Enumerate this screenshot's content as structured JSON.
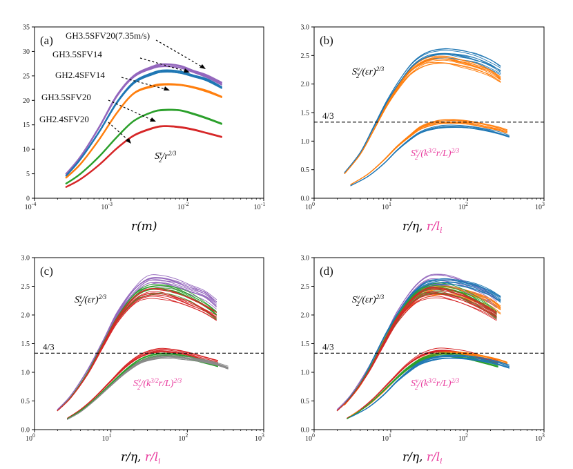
{
  "colors": {
    "purple": "#9467bd",
    "blue": "#1f77b4",
    "orange": "#ff7f0e",
    "green": "#2ca02c",
    "red": "#d62728",
    "magenta": "#e8399c",
    "gray": "#8a8a8a",
    "yellow": "#bcbd22"
  },
  "chart_data": [
    {
      "panel": "(a)",
      "type": "line",
      "xscale": "log",
      "xlim": [
        0.0001,
        0.1
      ],
      "ylim": [
        0,
        35
      ],
      "xticks": [
        "10^{-4}",
        "10^{-3}",
        "10^{-2}",
        "10^{-1}"
      ],
      "yticks": [
        "0",
        "5",
        "10",
        "15",
        "20",
        "25",
        "30",
        "35"
      ],
      "xlabel": "r(m)",
      "curve_label": "S2v/r^2/3",
      "series": [
        {
          "name": "GH3.5SFV20(7.35m/s)",
          "color": "purple",
          "x": [
            0.00026,
            0.0004,
            0.0007,
            0.0012,
            0.002,
            0.0035,
            0.005,
            0.008,
            0.012,
            0.018,
            0.028
          ],
          "y": [
            5.0,
            8.5,
            14.5,
            21.0,
            25.0,
            26.8,
            27.3,
            27.0,
            26.0,
            25.0,
            23.5
          ]
        },
        {
          "name": "GH3.5SFV14",
          "color": "blue",
          "x": [
            0.00026,
            0.0004,
            0.0007,
            0.0012,
            0.002,
            0.0035,
            0.005,
            0.008,
            0.012,
            0.018,
            0.028
          ],
          "y": [
            4.6,
            8.0,
            13.5,
            19.5,
            23.5,
            25.3,
            25.8,
            25.6,
            24.8,
            24.0,
            22.5
          ]
        },
        {
          "name": "GH2.4SFV14",
          "color": "orange",
          "x": [
            0.00026,
            0.0004,
            0.0007,
            0.0012,
            0.002,
            0.0035,
            0.005,
            0.008,
            0.012,
            0.018,
            0.028
          ],
          "y": [
            4.2,
            7.0,
            12.0,
            17.5,
            21.5,
            23.0,
            23.4,
            23.3,
            22.8,
            22.0,
            20.8
          ]
        },
        {
          "name": "GH3.5SFV20",
          "color": "green",
          "x": [
            0.00026,
            0.0004,
            0.0007,
            0.0012,
            0.002,
            0.0035,
            0.005,
            0.008,
            0.012,
            0.018,
            0.028
          ],
          "y": [
            3.0,
            5.0,
            8.5,
            12.5,
            15.8,
            17.6,
            18.0,
            17.9,
            17.2,
            16.3,
            15.2
          ]
        },
        {
          "name": "GH2.4SFV20",
          "color": "red",
          "x": [
            0.00026,
            0.0004,
            0.0007,
            0.0012,
            0.002,
            0.0035,
            0.005,
            0.008,
            0.012,
            0.018,
            0.028
          ],
          "y": [
            2.3,
            3.9,
            6.8,
            10.2,
            12.8,
            14.3,
            14.7,
            14.5,
            14.0,
            13.3,
            12.5
          ]
        }
      ],
      "annotations": [
        "GH3.5SFV20(7.35m/s)",
        "GH3.5SFV14",
        "GH2.4SFV14",
        "GH3.5SFV20",
        "GH2.4SFV20"
      ]
    },
    {
      "panel": "(b)",
      "type": "line",
      "xscale": "log",
      "xlim": [
        1,
        1000
      ],
      "ylim": [
        0,
        3.0
      ],
      "xticks": [
        "10^0",
        "10^1",
        "10^2",
        "10^3"
      ],
      "yticks": [
        "0.0",
        "0.5",
        "1.0",
        "1.5",
        "2.0",
        "2.5",
        "3.0"
      ],
      "hline": {
        "y": 1.3333,
        "label": "4/3"
      },
      "upper_label": "S2v/(εr)^2/3",
      "lower_label": "S2v/(k^3/2 r/L)^2/3",
      "upper_series": [
        {
          "name": "GH3.5SFV14",
          "color": "blue",
          "x": [
            2.5,
            4,
            6,
            9,
            14,
            20,
            30,
            50,
            80,
            130,
            200,
            270
          ],
          "y": [
            0.45,
            0.8,
            1.25,
            1.7,
            2.1,
            2.35,
            2.5,
            2.55,
            2.52,
            2.45,
            2.35,
            2.25
          ]
        },
        {
          "name": "GH2.4SFV14",
          "color": "orange",
          "x": [
            2.5,
            4,
            6,
            9,
            14,
            20,
            30,
            50,
            80,
            130,
            200,
            270
          ],
          "y": [
            0.43,
            0.77,
            1.2,
            1.65,
            2.05,
            2.28,
            2.42,
            2.45,
            2.4,
            2.32,
            2.22,
            2.1
          ]
        }
      ],
      "lower_series": [
        {
          "name": "GH2.4SFV14",
          "color": "orange",
          "x": [
            3,
            5,
            8,
            12,
            18,
            25,
            40,
            60,
            100,
            160,
            250,
            330
          ],
          "y": [
            0.24,
            0.42,
            0.66,
            0.9,
            1.1,
            1.24,
            1.33,
            1.35,
            1.33,
            1.28,
            1.22,
            1.17
          ]
        },
        {
          "name": "GH3.5SFV14",
          "color": "blue",
          "x": [
            3,
            5,
            8,
            12,
            18,
            25,
            40,
            60,
            100,
            160,
            250,
            350
          ],
          "y": [
            0.22,
            0.38,
            0.6,
            0.84,
            1.04,
            1.17,
            1.25,
            1.27,
            1.26,
            1.22,
            1.16,
            1.1
          ]
        }
      ]
    },
    {
      "panel": "(c)",
      "type": "line",
      "xscale": "log",
      "xlim": [
        1,
        1000
      ],
      "ylim": [
        0,
        3.0
      ],
      "xticks": [
        "10^0",
        "10^1",
        "10^2",
        "10^3"
      ],
      "yticks": [
        "0.0",
        "0.5",
        "1.0",
        "1.5",
        "2.0",
        "2.5",
        "3.0"
      ],
      "hline": {
        "y": 1.3333,
        "label": "4/3"
      },
      "upper_label": "S2v/(εr)^2/3",
      "lower_label": "S2v/(k^3/2 r/L)^2/3",
      "upper_series": [
        {
          "name": "GH3.5SFV20(7.35m/s)",
          "color": "purple",
          "x": [
            2,
            3,
            5,
            8,
            12,
            20,
            30,
            45,
            70,
            110,
            170,
            240
          ],
          "y": [
            0.35,
            0.6,
            1.05,
            1.55,
            2.0,
            2.4,
            2.58,
            2.6,
            2.55,
            2.45,
            2.35,
            2.2
          ]
        },
        {
          "name": "GH3.5SFV20",
          "color": "green",
          "x": [
            2,
            3,
            5,
            8,
            12,
            20,
            30,
            45,
            70,
            110,
            170,
            240
          ],
          "y": [
            0.33,
            0.57,
            1.0,
            1.5,
            1.92,
            2.3,
            2.43,
            2.45,
            2.4,
            2.3,
            2.15,
            2.0
          ]
        },
        {
          "name": "GH2.4SFV20",
          "color": "red",
          "x": [
            2,
            3,
            5,
            8,
            12,
            20,
            30,
            45,
            70,
            110,
            170,
            240
          ],
          "y": [
            0.33,
            0.56,
            0.98,
            1.48,
            1.9,
            2.25,
            2.38,
            2.38,
            2.32,
            2.22,
            2.1,
            1.98
          ]
        }
      ],
      "lower_series": [
        {
          "name": "GH2.4SFV20",
          "color": "red",
          "x": [
            2.7,
            4,
            6,
            10,
            16,
            25,
            40,
            60,
            100,
            160,
            250
          ],
          "y": [
            0.2,
            0.35,
            0.55,
            0.85,
            1.12,
            1.3,
            1.38,
            1.38,
            1.33,
            1.25,
            1.18
          ]
        },
        {
          "name": "GH3.5SFV20",
          "color": "green",
          "x": [
            2.7,
            4,
            6,
            10,
            16,
            25,
            40,
            60,
            100,
            160,
            250
          ],
          "y": [
            0.19,
            0.33,
            0.52,
            0.8,
            1.05,
            1.22,
            1.3,
            1.3,
            1.26,
            1.19,
            1.12
          ]
        },
        {
          "name": "GH3.5SFV20(7.35m/s)",
          "color": "gray",
          "x": [
            2.7,
            4,
            6,
            10,
            16,
            25,
            40,
            60,
            100,
            160,
            250,
            340
          ],
          "y": [
            0.18,
            0.31,
            0.5,
            0.77,
            1.01,
            1.18,
            1.26,
            1.27,
            1.24,
            1.2,
            1.14,
            1.08
          ]
        }
      ]
    },
    {
      "panel": "(d)",
      "type": "line",
      "xscale": "log",
      "xlim": [
        1,
        1000
      ],
      "ylim": [
        0,
        3.0
      ],
      "xticks": [
        "10^0",
        "10^1",
        "10^2",
        "10^3"
      ],
      "yticks": [
        "0.0",
        "0.5",
        "1.0",
        "1.5",
        "2.0",
        "2.5",
        "3.0"
      ],
      "hline": {
        "y": 1.3333,
        "label": "4/3"
      },
      "upper_label": "S2v/(εr)^2/3",
      "lower_label": "S2v/(k^3/2 r/L)^2/3",
      "upper_series": [
        {
          "name": "GH3.5SFV20(7.35m/s)",
          "color": "purple",
          "x": [
            2,
            3,
            5,
            8,
            12,
            20,
            30,
            45,
            70,
            110,
            170,
            240
          ],
          "y": [
            0.35,
            0.6,
            1.05,
            1.55,
            2.0,
            2.4,
            2.58,
            2.6,
            2.55,
            2.45,
            2.35,
            2.2
          ]
        },
        {
          "name": "GH3.5SFV14",
          "color": "blue",
          "x": [
            2.5,
            4,
            6,
            9,
            14,
            20,
            30,
            50,
            80,
            130,
            200,
            270
          ],
          "y": [
            0.45,
            0.8,
            1.25,
            1.7,
            2.1,
            2.35,
            2.5,
            2.55,
            2.52,
            2.45,
            2.35,
            2.25
          ]
        },
        {
          "name": "GH2.4SFV14",
          "color": "orange",
          "x": [
            2.5,
            4,
            6,
            9,
            14,
            20,
            30,
            50,
            80,
            130,
            200,
            270
          ],
          "y": [
            0.43,
            0.77,
            1.2,
            1.65,
            2.05,
            2.28,
            2.42,
            2.45,
            2.4,
            2.32,
            2.22,
            2.1
          ]
        },
        {
          "name": "GH3.5SFV20",
          "color": "green",
          "x": [
            2,
            3,
            5,
            8,
            12,
            20,
            30,
            45,
            70,
            110,
            170,
            240
          ],
          "y": [
            0.33,
            0.57,
            1.0,
            1.5,
            1.92,
            2.3,
            2.43,
            2.45,
            2.4,
            2.3,
            2.15,
            2.0
          ]
        },
        {
          "name": "GH2.4SFV20",
          "color": "red",
          "x": [
            2,
            3,
            5,
            8,
            12,
            20,
            30,
            45,
            70,
            110,
            170,
            240
          ],
          "y": [
            0.33,
            0.56,
            0.98,
            1.48,
            1.9,
            2.25,
            2.38,
            2.38,
            2.32,
            2.22,
            2.1,
            1.98
          ]
        }
      ],
      "lower_series": [
        {
          "name": "GH2.4SFV20",
          "color": "red",
          "x": [
            2.7,
            4,
            6,
            10,
            16,
            25,
            40,
            60,
            100,
            160,
            250
          ],
          "y": [
            0.2,
            0.35,
            0.55,
            0.85,
            1.12,
            1.3,
            1.38,
            1.38,
            1.33,
            1.25,
            1.18
          ]
        },
        {
          "name": "GH2.4SFV14",
          "color": "orange",
          "x": [
            3,
            5,
            8,
            12,
            18,
            25,
            40,
            60,
            100,
            160,
            250,
            330
          ],
          "y": [
            0.24,
            0.42,
            0.66,
            0.9,
            1.1,
            1.24,
            1.33,
            1.35,
            1.33,
            1.28,
            1.22,
            1.17
          ]
        },
        {
          "name": "GH3.5SFV20",
          "color": "green",
          "x": [
            2.7,
            4,
            6,
            10,
            16,
            25,
            40,
            60,
            100,
            160,
            250
          ],
          "y": [
            0.19,
            0.33,
            0.52,
            0.8,
            1.05,
            1.22,
            1.3,
            1.3,
            1.26,
            1.19,
            1.12
          ]
        },
        {
          "name": "GH3.5SFV14",
          "color": "blue",
          "x": [
            3,
            5,
            8,
            12,
            18,
            25,
            40,
            60,
            100,
            160,
            250,
            350
          ],
          "y": [
            0.22,
            0.38,
            0.6,
            0.84,
            1.04,
            1.17,
            1.25,
            1.27,
            1.26,
            1.22,
            1.16,
            1.1
          ]
        }
      ]
    }
  ]
}
